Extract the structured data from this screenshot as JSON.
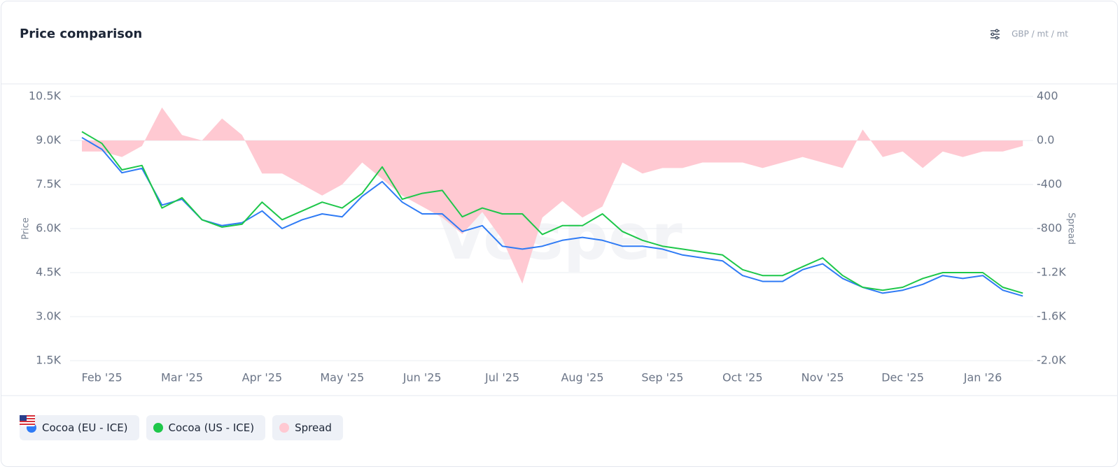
{
  "chart_data": {
    "type": "line",
    "title": "Price comparison",
    "unit": "GBP / mt / mt",
    "watermark": "Vesper",
    "ylabel": "Price",
    "y2label": "Spread",
    "grid": true,
    "categories": [
      null,
      "Feb '25",
      null,
      null,
      null,
      "Mar '25",
      null,
      null,
      null,
      "Apr '25",
      null,
      null,
      null,
      "May '25",
      null,
      null,
      null,
      "Jun '25",
      null,
      null,
      null,
      "Jul '25",
      null,
      null,
      null,
      "Aug '25",
      null,
      null,
      null,
      "Sep '25",
      null,
      null,
      null,
      "Oct '25",
      null,
      null,
      null,
      "Nov '25",
      null,
      null,
      null,
      "Dec '25",
      null,
      null,
      null,
      "Jan '26",
      null,
      null
    ],
    "ylim": [
      1500,
      10500
    ],
    "yticks": [
      {
        "value": 10500,
        "label": "10.5K"
      },
      {
        "value": 9000,
        "label": "9.0K"
      },
      {
        "value": 7500,
        "label": "7.5K"
      },
      {
        "value": 6000,
        "label": "6.0K"
      },
      {
        "value": 4500,
        "label": "4.5K"
      },
      {
        "value": 3000,
        "label": "3.0K"
      },
      {
        "value": 1500,
        "label": "1.5K"
      }
    ],
    "y2lim": [
      -2000,
      400
    ],
    "y2ticks": [
      400,
      {
        "value": 0,
        "label": "0.0"
      },
      -400,
      -800,
      {
        "value": -1200,
        "label": "-1.2K"
      },
      {
        "value": -1600,
        "label": "-1.6K"
      },
      {
        "value": -2000,
        "label": "-2.0K"
      }
    ],
    "series": [
      {
        "name": "Cocoa (EU - ICE)",
        "type": "line",
        "color": "#2f7bf5",
        "values": [
          9100,
          8700,
          7900,
          8050,
          6800,
          7000,
          6300,
          6100,
          6200,
          6600,
          6000,
          6300,
          6500,
          6400,
          7100,
          7600,
          6900,
          6500,
          6500,
          5900,
          6100,
          5400,
          5300,
          5400,
          5600,
          5700,
          5600,
          5400,
          5400,
          5300,
          5100,
          5000,
          4900,
          4400,
          4200,
          4200,
          4600,
          4800,
          4300,
          4000,
          3800,
          3900,
          4100,
          4400,
          4300,
          4400,
          3900,
          3700
        ]
      },
      {
        "name": "Cocoa (US - ICE)",
        "type": "line",
        "color": "#1ec74a",
        "values": [
          9300,
          8900,
          8000,
          8150,
          6700,
          7050,
          6300,
          6050,
          6150,
          6900,
          6300,
          6600,
          6900,
          6700,
          7200,
          8100,
          7000,
          7200,
          7300,
          6400,
          6700,
          6500,
          6500,
          5800,
          6100,
          6100,
          6500,
          5900,
          5600,
          5400,
          5300,
          5200,
          5100,
          4600,
          4400,
          4400,
          4700,
          5000,
          4400,
          4000,
          3900,
          4000,
          4300,
          4500,
          4500,
          4500,
          4000,
          3800
        ]
      },
      {
        "name": "Spread",
        "type": "area",
        "axis": "y2",
        "color": "#ffc9d2",
        "values": [
          -100,
          -100,
          -150,
          -50,
          300,
          50,
          0,
          200,
          50,
          -300,
          -300,
          -400,
          -500,
          -400,
          -200,
          -350,
          -500,
          -600,
          -700,
          -850,
          -650,
          -900,
          -1300,
          -700,
          -550,
          -700,
          -600,
          -200,
          -300,
          -250,
          -250,
          -200,
          -200,
          -200,
          -250,
          -200,
          -150,
          -200,
          -250,
          100,
          -150,
          -100,
          -250,
          -100,
          -150,
          -100,
          -100,
          -50
        ]
      }
    ]
  }
}
